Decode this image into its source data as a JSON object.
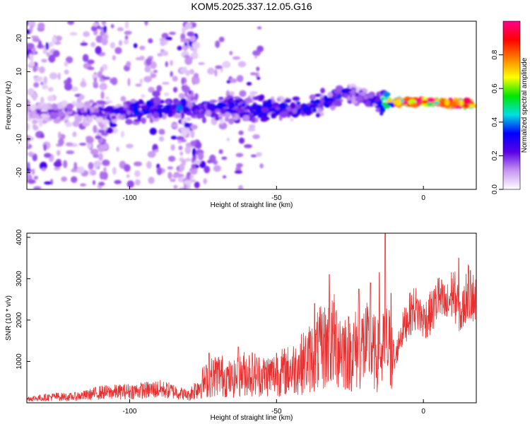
{
  "chart_data": [
    {
      "type": "heatmap",
      "title": "KOM5.2025.337.12.05.G16",
      "xlabel": "Height of straight line (km)",
      "ylabel": "Frequency (Hz)",
      "xlim": [
        -135,
        18
      ],
      "ylim": [
        -25,
        25
      ],
      "x_ticks": [
        "-100",
        "-50",
        "0"
      ],
      "y_ticks": [
        "20",
        "10",
        "0",
        "-10",
        "-20"
      ],
      "colorbar": {
        "label": "Normalized spectral amplitude",
        "range": [
          0,
          1
        ],
        "ticks": [
          "0.0",
          "0.2",
          "0.4",
          "0.6",
          "0.8"
        ],
        "colors": [
          "#ffffff",
          "#c896f0",
          "#5a00e6",
          "#0000ff",
          "#00e0e0",
          "#00e600",
          "#ffff00",
          "#ff8000",
          "#ff0000",
          "#ff0090"
        ]
      },
      "ridge": {
        "x": [
          -135,
          -120,
          -110,
          -100,
          -90,
          -80,
          -70,
          -60,
          -50,
          -40,
          -35,
          -30,
          -27,
          -25,
          -20,
          -15,
          -10,
          -5,
          0,
          5,
          10,
          18
        ],
        "frequency": [
          -2,
          -2,
          -2,
          -1,
          -1,
          -1,
          -1,
          -1,
          -1,
          -0.5,
          0.5,
          2,
          3.5,
          3,
          2,
          1.5,
          1,
          1,
          1,
          1,
          0.5,
          0.5
        ],
        "amplitude": [
          0.15,
          0.18,
          0.22,
          0.32,
          0.3,
          0.3,
          0.28,
          0.3,
          0.3,
          0.3,
          0.3,
          0.3,
          0.28,
          0.25,
          0.25,
          0.3,
          0.7,
          0.85,
          0.9,
          0.85,
          0.8,
          0.75
        ]
      }
    },
    {
      "type": "line",
      "xlabel": "Height of straight line (km)",
      "ylabel": "SNR (10 * v/v)",
      "xlim": [
        -135,
        18
      ],
      "ylim": [
        0,
        4100
      ],
      "x_ticks": [
        "-100",
        "-50",
        "0"
      ],
      "y_ticks": [
        "4000",
        "3000",
        "2000",
        "1000"
      ],
      "series": [
        {
          "name": "SNR",
          "color": "#e83030",
          "x": [
            -135,
            -130,
            -125,
            -120,
            -115,
            -110,
            -105,
            -100,
            -95,
            -90,
            -85,
            -80,
            -75,
            -70,
            -65,
            -60,
            -55,
            -50,
            -45,
            -40,
            -35,
            -30,
            -25,
            -20,
            -15,
            -12,
            -10,
            -8,
            -5,
            -3,
            0,
            3,
            5,
            8,
            10,
            13,
            15,
            18
          ],
          "y": [
            100,
            120,
            150,
            140,
            180,
            250,
            260,
            280,
            300,
            330,
            280,
            180,
            500,
            700,
            550,
            750,
            650,
            700,
            800,
            1000,
            1300,
            1500,
            1200,
            1400,
            1100,
            1400,
            900,
            1600,
            2100,
            2300,
            2000,
            2200,
            2500,
            2300,
            2700,
            2100,
            2700,
            2500
          ]
        }
      ],
      "peaks": [
        {
          "x": -73,
          "y": 1200
        },
        {
          "x": -63,
          "y": 1350
        },
        {
          "x": -50,
          "y": 1200
        },
        {
          "x": -37,
          "y": 2400
        },
        {
          "x": -32,
          "y": 3100
        },
        {
          "x": -22,
          "y": 2750
        },
        {
          "x": -18,
          "y": 2900
        },
        {
          "x": -15,
          "y": 3150
        },
        {
          "x": -13,
          "y": 4100
        },
        {
          "x": -11,
          "y": 2650
        },
        {
          "x": 5,
          "y": 3000
        },
        {
          "x": 12,
          "y": 3500
        },
        {
          "x": 16,
          "y": 3200
        }
      ]
    }
  ]
}
